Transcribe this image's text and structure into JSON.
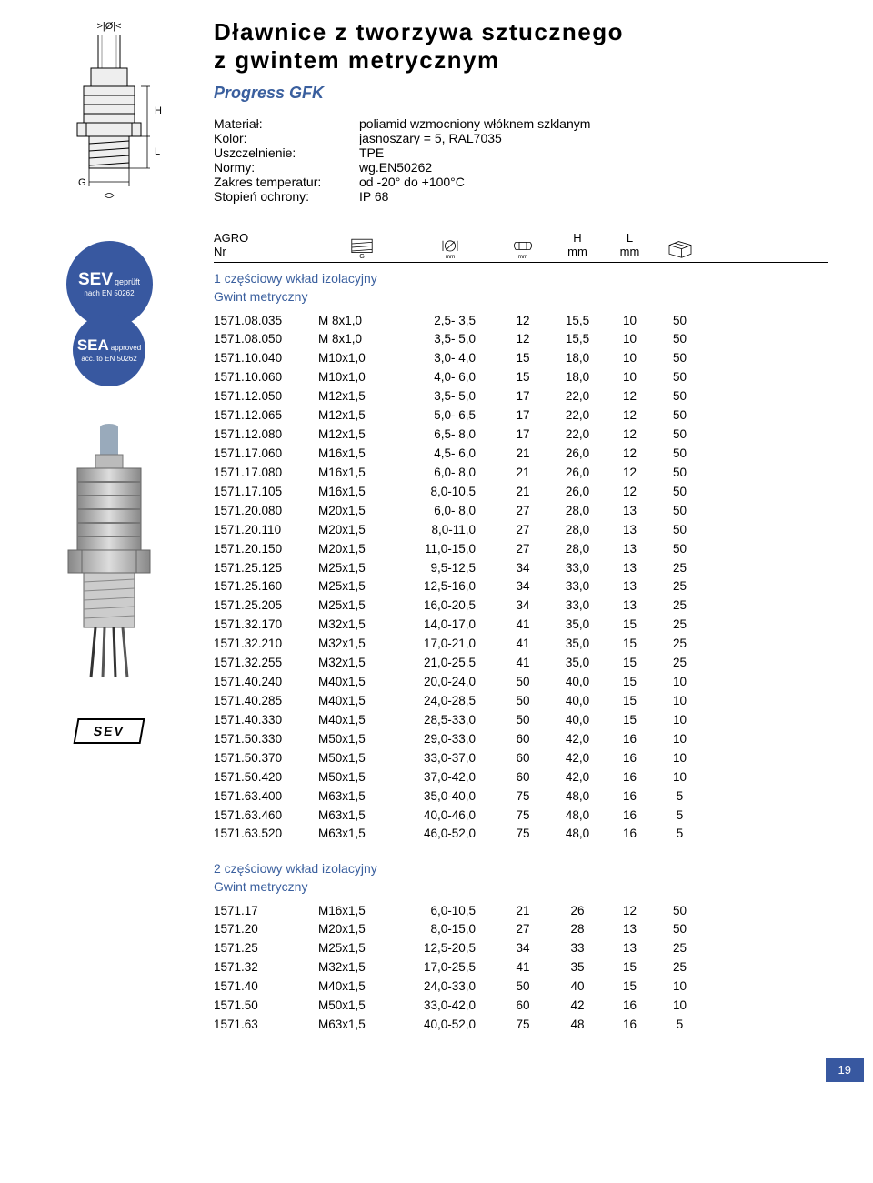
{
  "title": {
    "line1": "Dławnice z tworzywa sztucznego",
    "line2": "z gwintem metrycznym"
  },
  "product_line": "Progress GFK",
  "specs": [
    {
      "label": "Materiał:",
      "value": "poliamid wzmocniony włóknem szklanym"
    },
    {
      "label": "Kolor:",
      "value": "jasnoszary = 5, RAL7035"
    },
    {
      "label": "Uszczelnienie:",
      "value": "TPE"
    },
    {
      "label": "Normy:",
      "value": "wg.EN50262"
    },
    {
      "label": "Zakres temperatur:",
      "value": "od -20° do +100°C"
    },
    {
      "label": "Stopień ochrony:",
      "value": "IP 68"
    }
  ],
  "badges": {
    "sev": {
      "main": "SEV",
      "main2": "geprüft",
      "sub": "nach EN 50262"
    },
    "sea": {
      "main": "SEA",
      "main2": "approved",
      "sub": "acc. to EN 50262"
    }
  },
  "sev_mark": "SEV",
  "headers": {
    "c1_top": "AGRO",
    "c1_bot": "Nr",
    "c5_top": "H",
    "c5_bot": "mm",
    "c6_top": "L",
    "c6_bot": "mm"
  },
  "section1": {
    "h1": "1 częściowy wkład izolacyjny",
    "h2": "Gwint metryczny"
  },
  "section2": {
    "h1": "2 częściowy wkład izolacyjny",
    "h2": "Gwint metryczny"
  },
  "t1": [
    [
      "1571.08.035",
      "M 8x1,0",
      "2,5- 3,5",
      "12",
      "15,5",
      "10",
      "50"
    ],
    [
      "1571.08.050",
      "M 8x1,0",
      "3,5- 5,0",
      "12",
      "15,5",
      "10",
      "50"
    ],
    [
      "1571.10.040",
      "M10x1,0",
      "3,0- 4,0",
      "15",
      "18,0",
      "10",
      "50"
    ],
    [
      "1571.10.060",
      "M10x1,0",
      "4,0- 6,0",
      "15",
      "18,0",
      "10",
      "50"
    ],
    [
      "1571.12.050",
      "M12x1,5",
      "3,5- 5,0",
      "17",
      "22,0",
      "12",
      "50"
    ],
    [
      "1571.12.065",
      "M12x1,5",
      "5,0- 6,5",
      "17",
      "22,0",
      "12",
      "50"
    ],
    [
      "1571.12.080",
      "M12x1,5",
      "6,5- 8,0",
      "17",
      "22,0",
      "12",
      "50"
    ],
    [
      "1571.17.060",
      "M16x1,5",
      "4,5- 6,0",
      "21",
      "26,0",
      "12",
      "50"
    ],
    [
      "1571.17.080",
      "M16x1,5",
      "6,0- 8,0",
      "21",
      "26,0",
      "12",
      "50"
    ],
    [
      "1571.17.105",
      "M16x1,5",
      "8,0-10,5",
      "21",
      "26,0",
      "12",
      "50"
    ],
    [
      "1571.20.080",
      "M20x1,5",
      "6,0- 8,0",
      "27",
      "28,0",
      "13",
      "50"
    ],
    [
      "1571.20.110",
      "M20x1,5",
      "8,0-11,0",
      "27",
      "28,0",
      "13",
      "50"
    ],
    [
      "1571.20.150",
      "M20x1,5",
      "11,0-15,0",
      "27",
      "28,0",
      "13",
      "50"
    ],
    [
      "1571.25.125",
      "M25x1,5",
      "9,5-12,5",
      "34",
      "33,0",
      "13",
      "25"
    ],
    [
      "1571.25.160",
      "M25x1,5",
      "12,5-16,0",
      "34",
      "33,0",
      "13",
      "25"
    ],
    [
      "1571.25.205",
      "M25x1,5",
      "16,0-20,5",
      "34",
      "33,0",
      "13",
      "25"
    ],
    [
      "1571.32.170",
      "M32x1,5",
      "14,0-17,0",
      "41",
      "35,0",
      "15",
      "25"
    ],
    [
      "1571.32.210",
      "M32x1,5",
      "17,0-21,0",
      "41",
      "35,0",
      "15",
      "25"
    ],
    [
      "1571.32.255",
      "M32x1,5",
      "21,0-25,5",
      "41",
      "35,0",
      "15",
      "25"
    ],
    [
      "1571.40.240",
      "M40x1,5",
      "20,0-24,0",
      "50",
      "40,0",
      "15",
      "10"
    ],
    [
      "1571.40.285",
      "M40x1,5",
      "24,0-28,5",
      "50",
      "40,0",
      "15",
      "10"
    ],
    [
      "1571.40.330",
      "M40x1,5",
      "28,5-33,0",
      "50",
      "40,0",
      "15",
      "10"
    ],
    [
      "1571.50.330",
      "M50x1,5",
      "29,0-33,0",
      "60",
      "42,0",
      "16",
      "10"
    ],
    [
      "1571.50.370",
      "M50x1,5",
      "33,0-37,0",
      "60",
      "42,0",
      "16",
      "10"
    ],
    [
      "1571.50.420",
      "M50x1,5",
      "37,0-42,0",
      "60",
      "42,0",
      "16",
      "10"
    ],
    [
      "1571.63.400",
      "M63x1,5",
      "35,0-40,0",
      "75",
      "48,0",
      "16",
      "5"
    ],
    [
      "1571.63.460",
      "M63x1,5",
      "40,0-46,0",
      "75",
      "48,0",
      "16",
      "5"
    ],
    [
      "1571.63.520",
      "M63x1,5",
      "46,0-52,0",
      "75",
      "48,0",
      "16",
      "5"
    ]
  ],
  "t2": [
    [
      "1571.17",
      "M16x1,5",
      "6,0-10,5",
      "21",
      "26",
      "12",
      "50"
    ],
    [
      "1571.20",
      "M20x1,5",
      "8,0-15,0",
      "27",
      "28",
      "13",
      "50"
    ],
    [
      "1571.25",
      "M25x1,5",
      "12,5-20,5",
      "34",
      "33",
      "13",
      "25"
    ],
    [
      "1571.32",
      "M32x1,5",
      "17,0-25,5",
      "41",
      "35",
      "15",
      "25"
    ],
    [
      "1571.40",
      "M40x1,5",
      "24,0-33,0",
      "50",
      "40",
      "15",
      "10"
    ],
    [
      "1571.50",
      "M50x1,5",
      "33,0-42,0",
      "60",
      "42",
      "16",
      "10"
    ],
    [
      "1571.63",
      "M63x1,5",
      "40,0-52,0",
      "75",
      "48",
      "16",
      "5"
    ]
  ],
  "page_number": "19",
  "drawing_label": {
    "top": ">|Ø|<",
    "H": "H",
    "L": "L",
    "G": "G"
  }
}
